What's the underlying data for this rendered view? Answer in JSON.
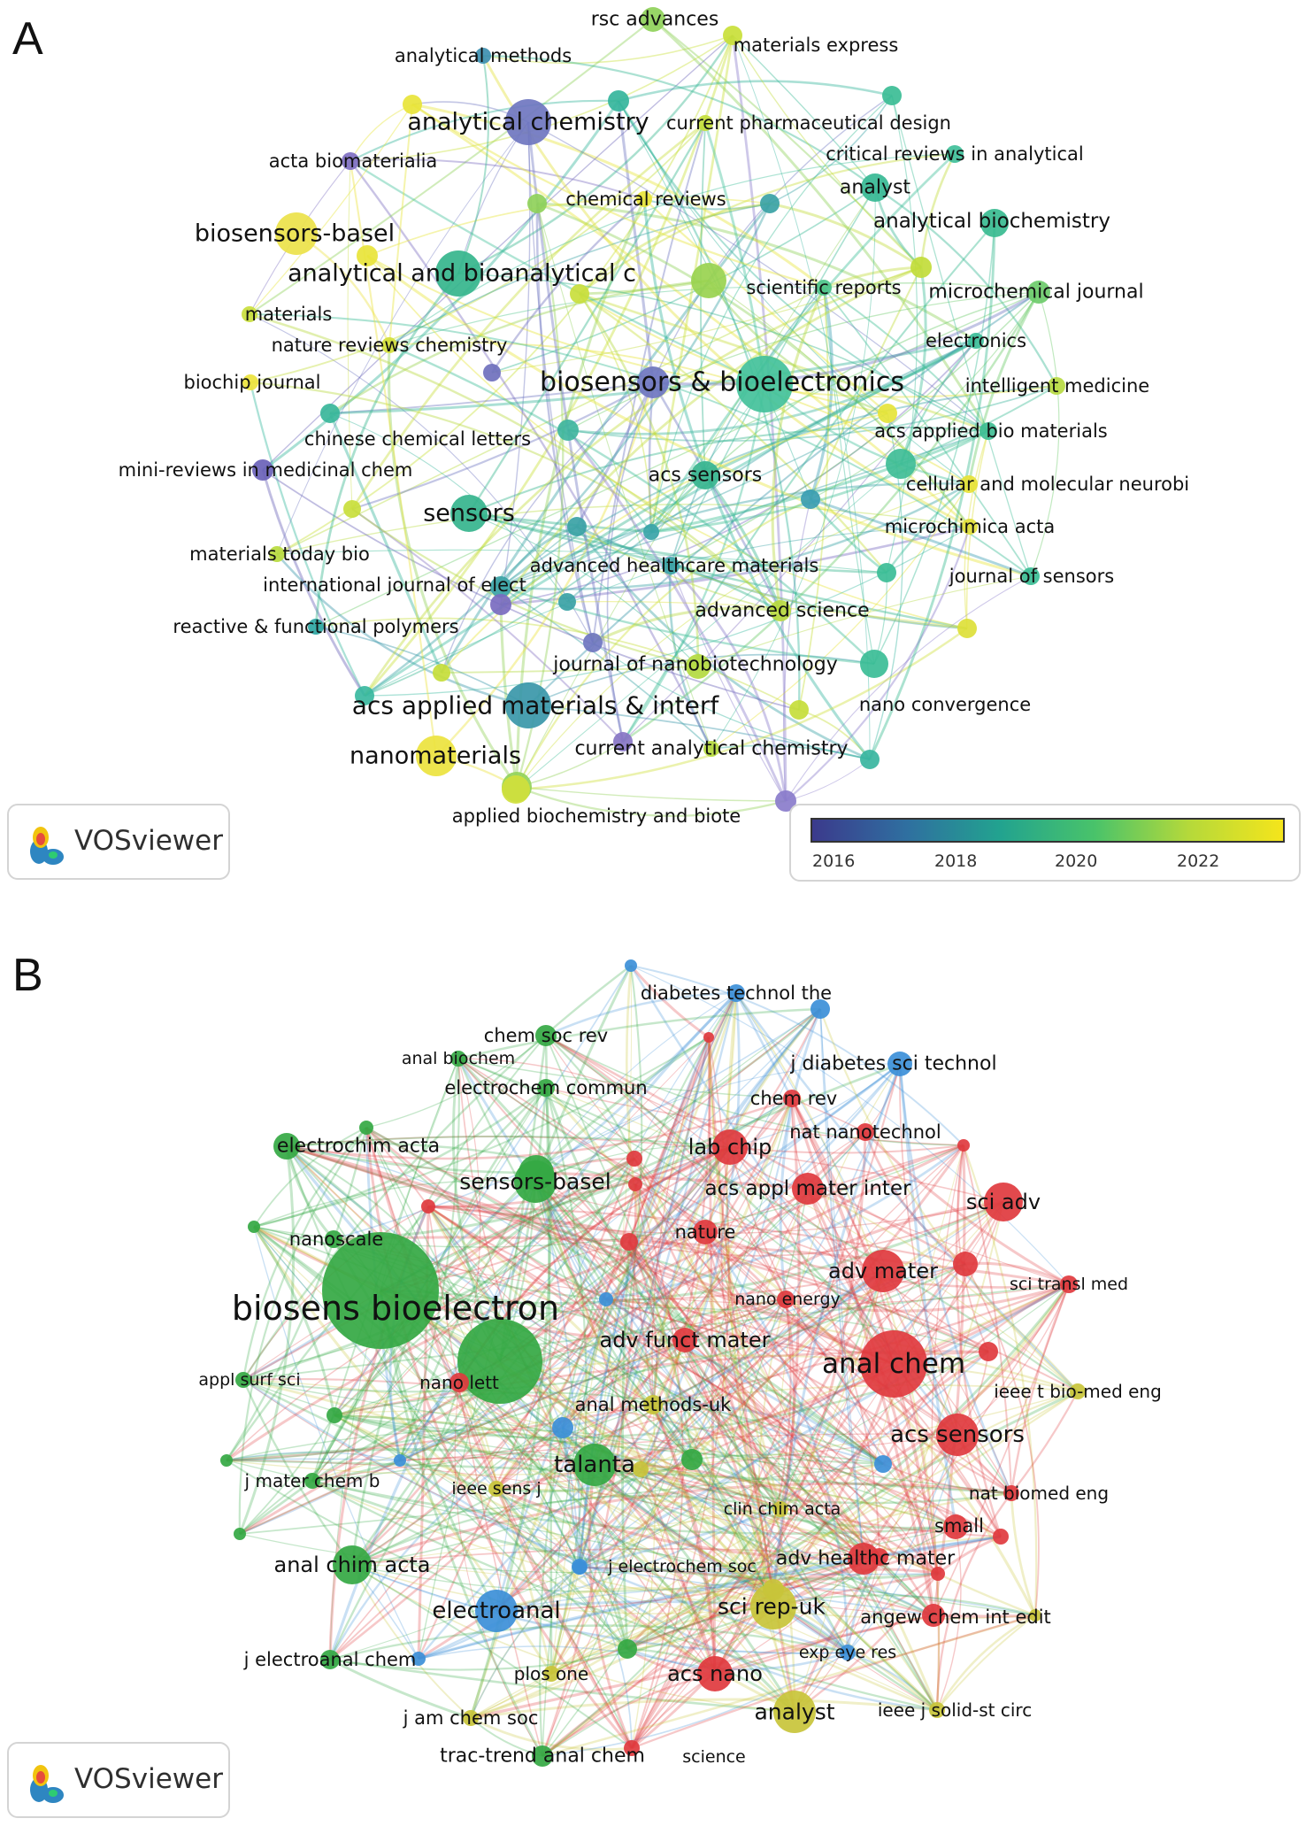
{
  "panels": [
    {
      "letter": "A",
      "watermark": "VOSviewer",
      "legend": {
        "ticks": [
          "2016",
          "2018",
          "2020",
          "2022"
        ],
        "gradient": [
          "#3b3a8c",
          "#2f6fa0",
          "#22a38f",
          "#49c36a",
          "#b5d93a",
          "#f5e51b"
        ]
      },
      "nodes": [
        {
          "label": "rsc advances",
          "color": "#8fd15a"
        },
        {
          "label": "analytical methods",
          "color": "#3d8fb0"
        },
        {
          "label": "materials express",
          "color": "#c9df38"
        },
        {
          "label": "analytical chemistry",
          "color": "#6f76c0"
        },
        {
          "label": "current pharmaceutical design",
          "color": "#c4de3c"
        },
        {
          "label": "critical reviews in analytical",
          "color": "#3fbf99"
        },
        {
          "label": "acta biomaterialia",
          "color": "#7f6fc2"
        },
        {
          "label": "analyst",
          "color": "#36b894"
        },
        {
          "label": "chemical reviews",
          "color": "#e8e43a"
        },
        {
          "label": "analytical biochemistry",
          "color": "#38bb90"
        },
        {
          "label": "biosensors-basel",
          "color": "#ece24a"
        },
        {
          "label": "analytical and bioanalytical c",
          "color": "#35b58c"
        },
        {
          "label": "scientific reports",
          "color": "#4cc389"
        },
        {
          "label": "microchemical journal",
          "color": "#6ccb6a"
        },
        {
          "label": "materials",
          "color": "#c9de3c"
        },
        {
          "label": "electronics",
          "color": "#3bbd98"
        },
        {
          "label": "nature reviews chemistry",
          "color": "#d4e03a"
        },
        {
          "label": "biosensors & bioelectronics",
          "color": "#43c19a"
        },
        {
          "label": "intelligent medicine",
          "color": "#b7da42"
        },
        {
          "label": "biochip journal",
          "color": "#ece33c"
        },
        {
          "label": "acs applied bio materials",
          "color": "#3fbe94"
        },
        {
          "label": "chinese chemical letters",
          "color": "#3fb59e"
        },
        {
          "label": "mini-reviews in medicinal chem",
          "color": "#6a62b8"
        },
        {
          "label": "cellular and molecular neurobi",
          "color": "#e7e235"
        },
        {
          "label": "acs sensors",
          "color": "#36b48e"
        },
        {
          "label": "sensors",
          "color": "#35b48d"
        },
        {
          "label": "microchimica acta",
          "color": "#e2e03a"
        },
        {
          "label": "materials today bio",
          "color": "#b8db3e"
        },
        {
          "label": "advanced healthcare materials",
          "color": "#3aa2a5"
        },
        {
          "label": "journal of sensors",
          "color": "#3bbd95"
        },
        {
          "label": "international journal of elect",
          "color": "#7a6bc0"
        },
        {
          "label": "advanced science",
          "color": "#b8d93f"
        },
        {
          "label": "reactive & functional polymers",
          "color": "#2ea7a3"
        },
        {
          "label": "journal of nanobiotechnology",
          "color": "#b3da40"
        },
        {
          "label": "acs applied materials & interf",
          "color": "#3a97a9"
        },
        {
          "label": "nano convergence",
          "color": "#3bbd96"
        },
        {
          "label": "nanomaterials",
          "color": "#ece33e"
        },
        {
          "label": "current analytical chemistry",
          "color": "#b5da3e"
        },
        {
          "label": "applied biochemistry and biote",
          "color": "#d0df3c"
        }
      ]
    },
    {
      "letter": "B",
      "watermark": "VOSviewer",
      "nodes": [
        {
          "label": "diabetes technol the",
          "color": "#3c8fd8"
        },
        {
          "label": "chem soc rev",
          "color": "#34a843"
        },
        {
          "label": "anal biochem",
          "color": "#34a843"
        },
        {
          "label": "j diabetes sci technol",
          "color": "#3c8fd8"
        },
        {
          "label": "chem rev",
          "color": "#e03a3e"
        },
        {
          "label": "electrochem commun",
          "color": "#34a843"
        },
        {
          "label": "nat nanotechnol",
          "color": "#e03a3e"
        },
        {
          "label": "electrochim acta",
          "color": "#34a843"
        },
        {
          "label": "lab chip",
          "color": "#e03a3e"
        },
        {
          "label": "sensors-basel",
          "color": "#34a843"
        },
        {
          "label": "acs appl mater inter",
          "color": "#e03a3e"
        },
        {
          "label": "sci adv",
          "color": "#e03a3e"
        },
        {
          "label": "nanoscale",
          "color": "#34a843"
        },
        {
          "label": "nature",
          "color": "#e03a3e"
        },
        {
          "label": "adv mater",
          "color": "#e03a3e"
        },
        {
          "label": "sci transl med",
          "color": "#e03a3e"
        },
        {
          "label": "nano energy",
          "color": "#e03a3e"
        },
        {
          "label": "biosens bioelectron",
          "color": "#34a843"
        },
        {
          "label": "adv funct mater",
          "color": "#e03a3e"
        },
        {
          "label": "anal chem",
          "color": "#e03a3e"
        },
        {
          "label": "appl surf sci",
          "color": "#34a843"
        },
        {
          "label": "nano lett",
          "color": "#e03a3e"
        },
        {
          "label": "ieee t bio-med eng",
          "color": "#c8c43a"
        },
        {
          "label": "anal methods-uk",
          "color": "#c8c43a"
        },
        {
          "label": "acs sensors",
          "color": "#e03a3e"
        },
        {
          "label": "talanta",
          "color": "#34a843"
        },
        {
          "label": "j mater chem b",
          "color": "#34a843"
        },
        {
          "label": "ieee sens j",
          "color": "#c8c43a"
        },
        {
          "label": "nat biomed eng",
          "color": "#e03a3e"
        },
        {
          "label": "clin chim acta",
          "color": "#c8c43a"
        },
        {
          "label": "small",
          "color": "#e03a3e"
        },
        {
          "label": "anal chim acta",
          "color": "#34a843"
        },
        {
          "label": "j electrochem soc",
          "color": "#3c8fd8"
        },
        {
          "label": "adv healthc mater",
          "color": "#e03a3e"
        },
        {
          "label": "electroanal",
          "color": "#3c8fd8"
        },
        {
          "label": "sci rep-uk",
          "color": "#c8c43a"
        },
        {
          "label": "angew chem int edit",
          "color": "#e03a3e"
        },
        {
          "label": "j electroanal chem",
          "color": "#34a843"
        },
        {
          "label": "plos one",
          "color": "#c8c43a"
        },
        {
          "label": "acs nano",
          "color": "#e03a3e"
        },
        {
          "label": "exp eye res",
          "color": "#3c8fd8"
        },
        {
          "label": "analyst",
          "color": "#c8c43a"
        },
        {
          "label": "ieee j solid-st circ",
          "color": "#c8c43a"
        },
        {
          "label": "j am chem soc",
          "color": "#c8c43a"
        },
        {
          "label": "trac-trend anal chem",
          "color": "#34a843"
        },
        {
          "label": "science",
          "color": "#e03a3e"
        }
      ]
    }
  ]
}
